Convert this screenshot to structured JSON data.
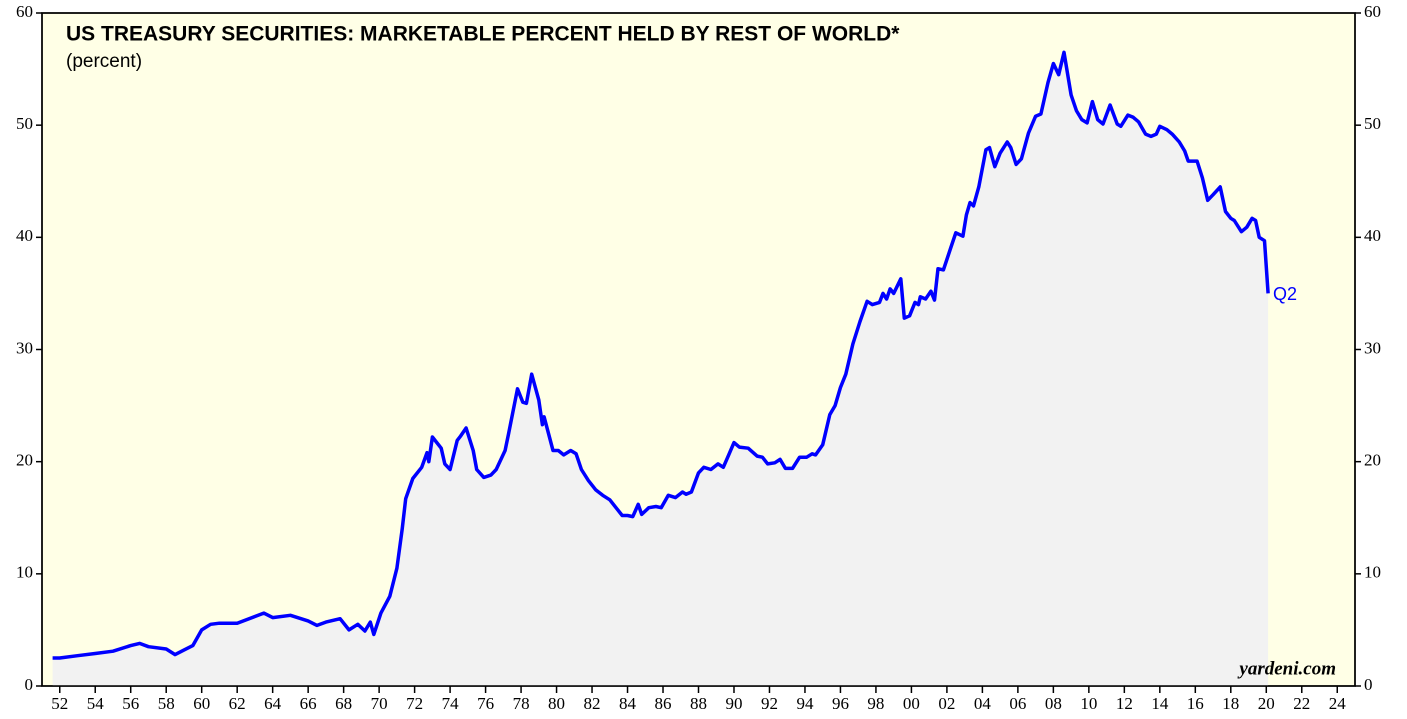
{
  "chart_data": {
    "type": "area",
    "title": "US TREASURY SECURITIES: MARKETABLE PERCENT HELD BY REST OF WORLD*",
    "subtitle": "(percent)",
    "annotations": {
      "end_label": "Q2",
      "source": "yardeni.com"
    },
    "background": "#ffffe6",
    "fill": "#f2f2f2",
    "xlim": [
      1951,
      2025
    ],
    "ylim": [
      0,
      60
    ],
    "yticks": [
      0,
      10,
      20,
      30,
      40,
      50,
      60
    ],
    "xticks": [
      {
        "value": 1952,
        "label": "52"
      },
      {
        "value": 1954,
        "label": "54"
      },
      {
        "value": 1956,
        "label": "56"
      },
      {
        "value": 1958,
        "label": "58"
      },
      {
        "value": 1960,
        "label": "60"
      },
      {
        "value": 1962,
        "label": "62"
      },
      {
        "value": 1964,
        "label": "64"
      },
      {
        "value": 1966,
        "label": "66"
      },
      {
        "value": 1968,
        "label": "68"
      },
      {
        "value": 1970,
        "label": "70"
      },
      {
        "value": 1972,
        "label": "72"
      },
      {
        "value": 1974,
        "label": "74"
      },
      {
        "value": 1976,
        "label": "76"
      },
      {
        "value": 1978,
        "label": "78"
      },
      {
        "value": 1980,
        "label": "80"
      },
      {
        "value": 1982,
        "label": "82"
      },
      {
        "value": 1984,
        "label": "84"
      },
      {
        "value": 1986,
        "label": "86"
      },
      {
        "value": 1988,
        "label": "88"
      },
      {
        "value": 1990,
        "label": "90"
      },
      {
        "value": 1992,
        "label": "92"
      },
      {
        "value": 1994,
        "label": "94"
      },
      {
        "value": 1996,
        "label": "96"
      },
      {
        "value": 1998,
        "label": "98"
      },
      {
        "value": 2000,
        "label": "00"
      },
      {
        "value": 2002,
        "label": "02"
      },
      {
        "value": 2004,
        "label": "04"
      },
      {
        "value": 2006,
        "label": "06"
      },
      {
        "value": 2008,
        "label": "08"
      },
      {
        "value": 2010,
        "label": "10"
      },
      {
        "value": 2012,
        "label": "12"
      },
      {
        "value": 2014,
        "label": "14"
      },
      {
        "value": 2016,
        "label": "16"
      },
      {
        "value": 2018,
        "label": "18"
      },
      {
        "value": 2020,
        "label": "20"
      },
      {
        "value": 2022,
        "label": "22"
      },
      {
        "value": 2024,
        "label": "24"
      }
    ],
    "series": [
      {
        "color": "#0000ff",
        "x": [
          1951.6,
          1952,
          1953,
          1954,
          1955,
          1956,
          1956.5,
          1957,
          1958,
          1958.5,
          1959,
          1959.5,
          1960,
          1960.5,
          1961,
          1962,
          1963,
          1963.5,
          1964,
          1965,
          1966,
          1966.5,
          1967,
          1967.8,
          1968.3,
          1968.8,
          1969.2,
          1969.5,
          1969.7,
          1970.1,
          1970.6,
          1971.0,
          1971.3,
          1971.5,
          1971.9,
          1972.4,
          1972.7,
          1972.8,
          1973.0,
          1973.5,
          1973.7,
          1974.0,
          1974.4,
          1974.6,
          1974.9,
          1975.3,
          1975.5,
          1975.9,
          1976.3,
          1976.6,
          1977.1,
          1977.3,
          1977.8,
          1978.1,
          1978.3,
          1978.6,
          1979.0,
          1979.2,
          1979.3,
          1979.8,
          1980.1,
          1980.4,
          1980.8,
          1981.1,
          1981.4,
          1981.8,
          1982.2,
          1982.6,
          1983.0,
          1983.4,
          1983.7,
          1984.0,
          1984.3,
          1984.6,
          1984.8,
          1985.2,
          1985.6,
          1985.9,
          1986.3,
          1986.7,
          1987.1,
          1987.3,
          1987.6,
          1988.0,
          1988.3,
          1988.7,
          1989.1,
          1989.4,
          1989.7,
          1990.0,
          1990.3,
          1990.8,
          1991.3,
          1991.6,
          1991.9,
          1992.3,
          1992.6,
          1992.9,
          1993.3,
          1993.7,
          1994.1,
          1994.4,
          1994.6,
          1995.0,
          1995.4,
          1995.7,
          1996.0,
          1996.3,
          1996.7,
          1997.1,
          1997.5,
          1997.8,
          1998.2,
          1998.4,
          1998.6,
          1998.8,
          1999.0,
          1999.4,
          1999.6,
          1999.9,
          2000.2,
          2000.4,
          2000.5,
          2000.8,
          2001.1,
          2001.3,
          2001.5,
          2001.8,
          2002.2,
          2002.5,
          2002.9,
          2003.1,
          2003.3,
          2003.5,
          2003.8,
          2004.2,
          2004.4,
          2004.7,
          2005.0,
          2005.2,
          2005.4,
          2005.6,
          2005.9,
          2006.2,
          2006.6,
          2007.0,
          2007.3,
          2007.7,
          2008.0,
          2008.3,
          2008.6,
          2009.0,
          2009.3,
          2009.6,
          2009.9,
          2010.2,
          2010.5,
          2010.8,
          2011.2,
          2011.6,
          2011.8,
          2012.2,
          2012.5,
          2012.8,
          2013.2,
          2013.5,
          2013.8,
          2014.0,
          2014.4,
          2014.7,
          2015.1,
          2015.4,
          2015.6,
          2016.1,
          2016.4,
          2016.7,
          2017.0,
          2017.4,
          2017.7,
          2018.0,
          2018.2,
          2018.6,
          2018.9,
          2019.2,
          2019.4,
          2019.6,
          2019.9,
          2020.1
        ],
        "values": [
          2.5,
          2.5,
          2.7,
          2.9,
          3.1,
          3.6,
          3.8,
          3.5,
          3.3,
          2.8,
          3.2,
          3.6,
          5.0,
          5.5,
          5.6,
          5.6,
          6.2,
          6.5,
          6.1,
          6.3,
          5.8,
          5.4,
          5.7,
          6.0,
          5.0,
          5.5,
          4.9,
          5.7,
          4.6,
          6.5,
          8.0,
          10.5,
          14,
          16.7,
          18.5,
          19.5,
          20.8,
          20.0,
          22.2,
          21.2,
          19.8,
          19.3,
          21.9,
          22.3,
          23.0,
          21.0,
          19.3,
          18.6,
          18.8,
          19.3,
          21,
          22.5,
          26.5,
          25.3,
          25.2,
          27.8,
          25.5,
          23.3,
          24.0,
          21.0,
          21.0,
          20.6,
          21.0,
          20.7,
          19.3,
          18.3,
          17.5,
          17.0,
          16.6,
          15.8,
          15.2,
          15.2,
          15.1,
          16.2,
          15.3,
          15.9,
          16.0,
          15.9,
          17.0,
          16.8,
          17.3,
          17.1,
          17.3,
          19.0,
          19.5,
          19.3,
          19.8,
          19.5,
          20.6,
          21.7,
          21.3,
          21.2,
          20.5,
          20.4,
          19.8,
          19.9,
          20.2,
          19.4,
          19.4,
          20.4,
          20.4,
          20.7,
          20.6,
          21.5,
          24.2,
          25.0,
          26.6,
          27.8,
          30.5,
          32.5,
          34.3,
          34.0,
          34.2,
          35.0,
          34.5,
          35.4,
          35.0,
          36.3,
          32.8,
          33.0,
          34.2,
          34.0,
          34.7,
          34.5,
          35.2,
          34.4,
          37.2,
          37.1,
          39.0,
          40.4,
          40.1,
          42.0,
          43.1,
          42.8,
          44.5,
          47.8,
          48.0,
          46.3,
          47.5,
          48.0,
          48.5,
          48.0,
          46.5,
          47.0,
          49.3,
          50.8,
          51.0,
          53.8,
          55.5,
          54.5,
          56.5,
          52.7,
          51.3,
          50.5,
          50.2,
          52.1,
          50.5,
          50.1,
          51.8,
          50.1,
          49.9,
          50.9,
          50.7,
          50.3,
          49.2,
          49.0,
          49.2,
          49.9,
          49.6,
          49.2,
          48.5,
          47.7,
          46.8,
          46.8,
          45.3,
          43.3,
          43.8,
          44.5,
          42.3,
          41.7,
          41.5,
          40.5,
          40.9,
          41.7,
          41.5,
          40.0,
          39.7,
          35.0
        ]
      }
    ]
  }
}
